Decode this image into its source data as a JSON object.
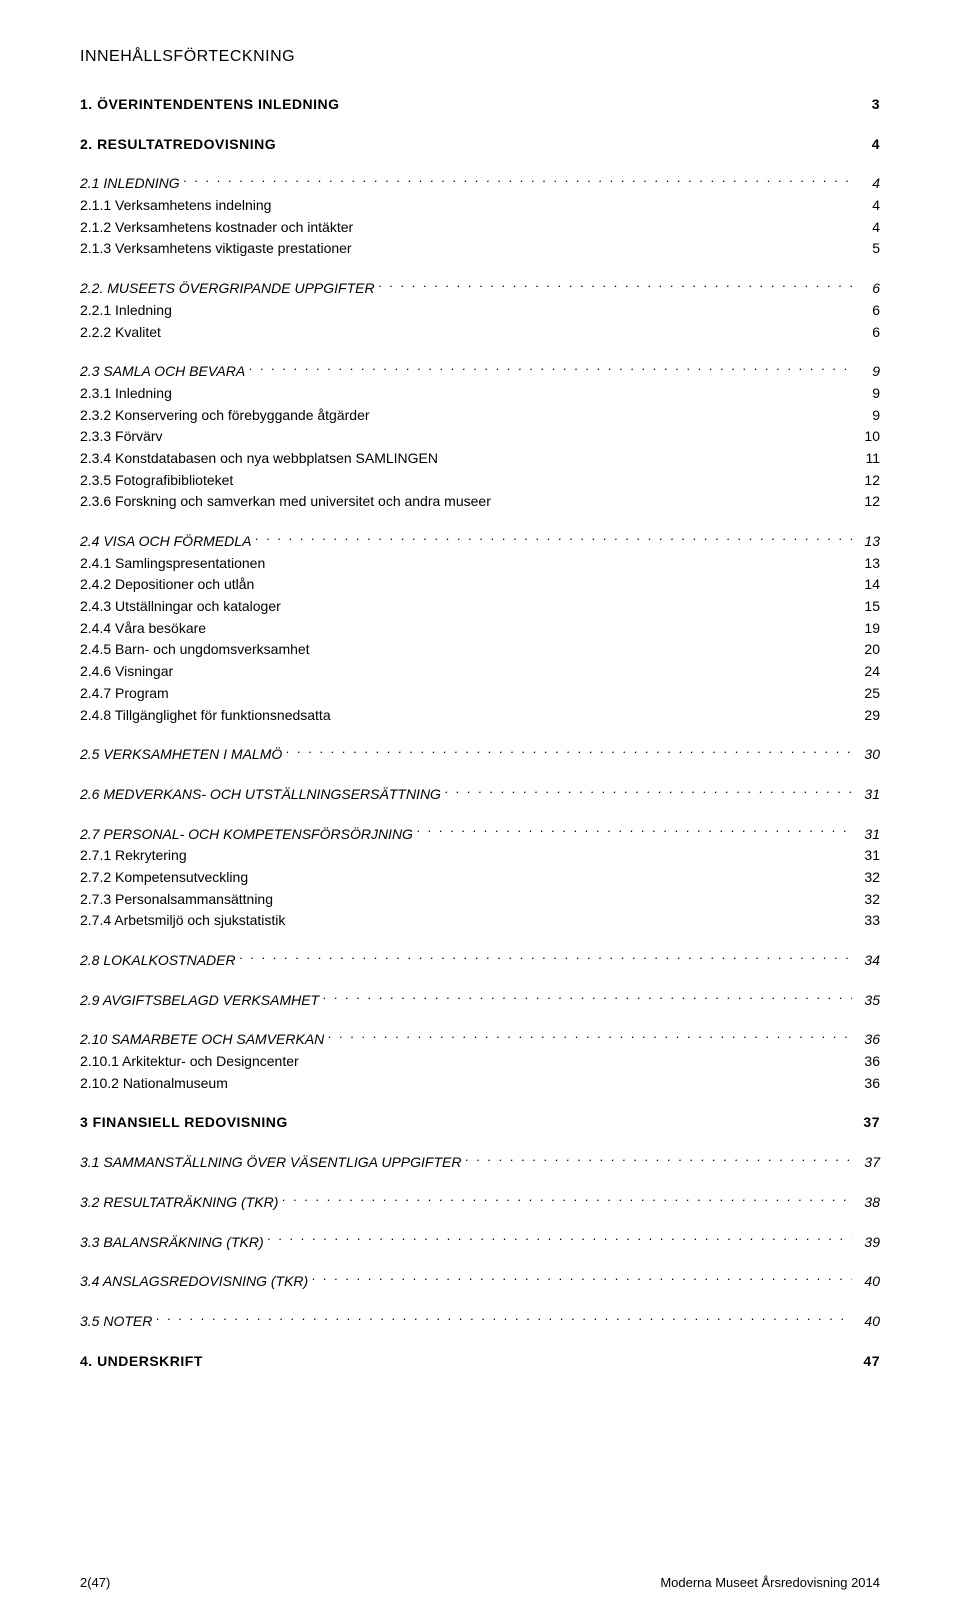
{
  "title": "INNEHÅLLSFÖRTECKNING",
  "footer": {
    "left": "2(47)",
    "right": "Moderna Museet Årsredovisning 2014"
  },
  "entries": [
    {
      "label": "1. ÖVERINTENDENTENS INLEDNING",
      "page": "3",
      "level": 1,
      "leader": "none",
      "gapBefore": true
    },
    {
      "label": "2. RESULTATREDOVISNING",
      "page": "4",
      "level": 1,
      "leader": "none",
      "gapBefore": true
    },
    {
      "label": "2.1 INLEDNING",
      "page": "4",
      "level": 2,
      "leader": "dotted",
      "gapBefore": true
    },
    {
      "label": "2.1.1 Verksamhetens indelning",
      "page": "4",
      "level": 3,
      "leader": "none"
    },
    {
      "label": "2.1.2 Verksamhetens kostnader och intäkter",
      "page": "4",
      "level": 3,
      "leader": "none"
    },
    {
      "label": "2.1.3 Verksamhetens viktigaste prestationer",
      "page": "5",
      "level": 3,
      "leader": "none"
    },
    {
      "label": "2.2. MUSEETS ÖVERGRIPANDE UPPGIFTER",
      "page": "6",
      "level": 2,
      "leader": "dotted",
      "gapBefore": true
    },
    {
      "label": "2.2.1 Inledning",
      "page": "6",
      "level": 3,
      "leader": "none"
    },
    {
      "label": "2.2.2 Kvalitet",
      "page": "6",
      "level": 3,
      "leader": "none"
    },
    {
      "label": "2.3 SAMLA OCH BEVARA",
      "page": "9",
      "level": 2,
      "leader": "dotted",
      "gapBefore": true
    },
    {
      "label": "2.3.1 Inledning",
      "page": "9",
      "level": 3,
      "leader": "none"
    },
    {
      "label": "2.3.2 Konservering och förebyggande åtgärder",
      "page": "9",
      "level": 3,
      "leader": "none"
    },
    {
      "label": "2.3.3 Förvärv",
      "page": "10",
      "level": 3,
      "leader": "none"
    },
    {
      "label": "2.3.4 Konstdatabasen och nya webbplatsen SAMLINGEN",
      "page": "11",
      "level": 3,
      "leader": "none"
    },
    {
      "label": "2.3.5 Fotografibiblioteket",
      "page": "12",
      "level": 3,
      "leader": "none"
    },
    {
      "label": "2.3.6 Forskning och samverkan med universitet och andra museer",
      "page": "12",
      "level": 3,
      "leader": "none"
    },
    {
      "label": "2.4 VISA OCH FÖRMEDLA",
      "page": "13",
      "level": 2,
      "leader": "dotted",
      "gapBefore": true
    },
    {
      "label": "2.4.1 Samlingspresentationen",
      "page": "13",
      "level": 3,
      "leader": "none"
    },
    {
      "label": "2.4.2 Depositioner och utlån",
      "page": "14",
      "level": 3,
      "leader": "none"
    },
    {
      "label": "2.4.3 Utställningar och kataloger",
      "page": "15",
      "level": 3,
      "leader": "none"
    },
    {
      "label": "2.4.4 Våra besökare",
      "page": "19",
      "level": 3,
      "leader": "none"
    },
    {
      "label": "2.4.5        Barn- och ungdomsverksamhet",
      "page": "20",
      "level": 3,
      "leader": "none"
    },
    {
      "label": "2.4.6 Visningar",
      "page": "24",
      "level": 3,
      "leader": "none"
    },
    {
      "label": "2.4.7 Program",
      "page": "25",
      "level": 3,
      "leader": "none"
    },
    {
      "label": "2.4.8 Tillgänglighet för funktionsnedsatta",
      "page": "29",
      "level": 3,
      "leader": "none"
    },
    {
      "label": "2.5 VERKSAMHETEN I MALMÖ",
      "page": "30",
      "level": 2,
      "leader": "dotted",
      "gapBefore": true
    },
    {
      "label": "2.6 MEDVERKANS- OCH UTSTÄLLNINGSERSÄTTNING",
      "page": "31",
      "level": 2,
      "leader": "dotted",
      "gapBefore": true
    },
    {
      "label": "2.7 PERSONAL- OCH KOMPETENSFÖRSÖRJNING",
      "page": "31",
      "level": 2,
      "leader": "dotted",
      "gapBefore": true
    },
    {
      "label": "2.7.1 Rekrytering",
      "page": "31",
      "level": 3,
      "leader": "none"
    },
    {
      "label": "2.7.2 Kompetensutveckling",
      "page": "32",
      "level": 3,
      "leader": "none"
    },
    {
      "label": "2.7.3 Personalsammansättning",
      "page": "32",
      "level": 3,
      "leader": "none"
    },
    {
      "label": "2.7.4 Arbetsmiljö och sjukstatistik",
      "page": "33",
      "level": 3,
      "leader": "none"
    },
    {
      "label": "2.8 LOKALKOSTNADER",
      "page": "34",
      "level": 2,
      "leader": "dotted",
      "gapBefore": true
    },
    {
      "label": "2.9 AVGIFTSBELAGD VERKSAMHET",
      "page": "35",
      "level": 2,
      "leader": "dotted",
      "gapBefore": true
    },
    {
      "label": "2.10 SAMARBETE OCH SAMVERKAN",
      "page": "36",
      "level": 2,
      "leader": "dotted",
      "gapBefore": true
    },
    {
      "label": "2.10.1 Arkitektur- och Designcenter",
      "page": "36",
      "level": 3,
      "leader": "none"
    },
    {
      "label": "2.10.2 Nationalmuseum",
      "page": "36",
      "level": 3,
      "leader": "none"
    },
    {
      "label": "3 FINANSIELL REDOVISNING",
      "page": "37",
      "level": 1,
      "leader": "none",
      "gapBefore": true
    },
    {
      "label": "3.1 SAMMANSTÄLLNING ÖVER VÄSENTLIGA UPPGIFTER",
      "page": "37",
      "level": 2,
      "leader": "dotted",
      "gapBefore": true
    },
    {
      "label": "3.2 RESULTATRÄKNING (TKR)",
      "page": "38",
      "level": 2,
      "leader": "dotted",
      "gapBefore": true
    },
    {
      "label": "3.3 BALANSRÄKNING (TKR)",
      "page": "39",
      "level": 2,
      "leader": "dotted",
      "gapBefore": true
    },
    {
      "label": "3.4 ANSLAGSREDOVISNING (TKR)",
      "page": "40",
      "level": 2,
      "leader": "dotted",
      "gapBefore": true
    },
    {
      "label": "3.5 NOTER",
      "page": "40",
      "level": 2,
      "leader": "dotted",
      "gapBefore": true
    },
    {
      "label": "4. UNDERSKRIFT",
      "page": "47",
      "level": 1,
      "leader": "none",
      "gapBefore": true
    }
  ]
}
